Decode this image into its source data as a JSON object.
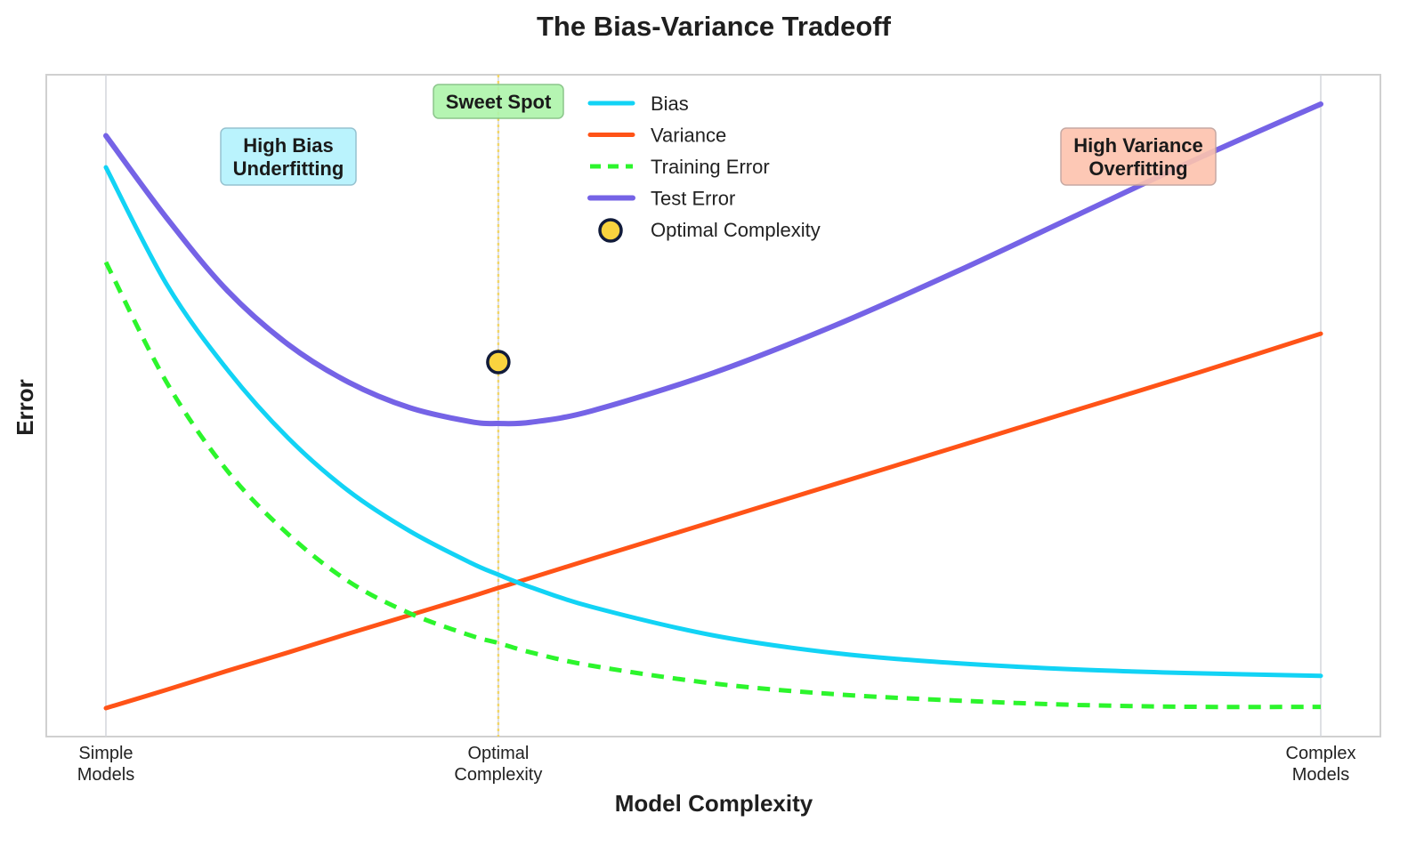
{
  "chart_data": {
    "type": "line",
    "title": "The Bias-Variance Tradeoff",
    "xlabel": "Model Complexity",
    "ylabel": "Error",
    "xlim": [
      0,
      10
    ],
    "ylim": [
      0,
      10
    ],
    "x_ticks": [
      {
        "x": 0,
        "label_lines": [
          "Simple",
          "Models"
        ]
      },
      {
        "x": 3.23,
        "label_lines": [
          "Optimal",
          "Complexity"
        ]
      },
      {
        "x": 10,
        "label_lines": [
          "Complex",
          "Models"
        ]
      }
    ],
    "y_ticks": [],
    "grid": {
      "x": true,
      "y": false
    },
    "legend_position": "upper center",
    "x": [
      0,
      0.5,
      1,
      1.5,
      2,
      2.5,
      3,
      3.23,
      3.5,
      4,
      5,
      6,
      7,
      8,
      9,
      10
    ],
    "series": [
      {
        "name": "Bias",
        "color": "#12d3f5",
        "style": "solid",
        "values": [
          9.0,
          7.15,
          5.8,
          4.72,
          3.88,
          3.25,
          2.75,
          2.56,
          2.36,
          2.05,
          1.6,
          1.32,
          1.16,
          1.06,
          1.0,
          0.96
        ]
      },
      {
        "name": "Variance",
        "color": "#ff5317",
        "style": "solid",
        "values": [
          0.45,
          0.74,
          1.04,
          1.33,
          1.63,
          1.92,
          2.21,
          2.35,
          2.51,
          2.81,
          3.4,
          3.99,
          4.58,
          5.17,
          5.76,
          6.37
        ]
      },
      {
        "name": "Training Error",
        "color": "#2cf52c",
        "style": "dashed",
        "values": [
          7.5,
          5.6,
          4.2,
          3.2,
          2.45,
          1.95,
          1.6,
          1.48,
          1.33,
          1.12,
          0.84,
          0.67,
          0.57,
          0.5,
          0.47,
          0.47
        ]
      },
      {
        "name": "Test Error",
        "color": "#7563e6",
        "style": "solid",
        "values": [
          9.5,
          8.2,
          7.05,
          6.2,
          5.6,
          5.2,
          4.98,
          4.95,
          4.97,
          5.15,
          5.75,
          6.5,
          7.35,
          8.25,
          9.15,
          10.0
        ]
      }
    ],
    "markers": [
      {
        "name": "Optimal Complexity",
        "x": 3.23,
        "y": 4.95,
        "fill": "#f9d33f",
        "edge": "#111b3a"
      }
    ],
    "vlines": [
      {
        "x": 3.23,
        "color": "#f9d33f",
        "style": "dotted"
      }
    ],
    "annotations": [
      {
        "lines": [
          "Sweet Spot"
        ],
        "x": 3.23,
        "y": 10.2,
        "bg": "#aef5aa",
        "border": "#7fbf7f"
      },
      {
        "lines": [
          "High Bias",
          "Underfitting"
        ],
        "x": 1.5,
        "y": 8.6,
        "bg": "#b3f2fd",
        "border": "#8bbccc"
      },
      {
        "lines": [
          "High Variance",
          "Overfitting"
        ],
        "x": 8.5,
        "y": 8.6,
        "bg": "#fdc3ae",
        "border": "#c0a09a"
      }
    ]
  },
  "legend": {
    "items": [
      {
        "label": "Bias",
        "kind": "line",
        "color": "#12d3f5",
        "dash": ""
      },
      {
        "label": "Variance",
        "kind": "line",
        "color": "#ff5317",
        "dash": ""
      },
      {
        "label": "Training Error",
        "kind": "line",
        "color": "#2cf52c",
        "dash": "12,8"
      },
      {
        "label": "Test Error",
        "kind": "line",
        "color": "#7563e6",
        "dash": ""
      },
      {
        "label": "Optimal Complexity",
        "kind": "marker",
        "color": "#f9d33f",
        "edge": "#111b3a"
      }
    ]
  }
}
